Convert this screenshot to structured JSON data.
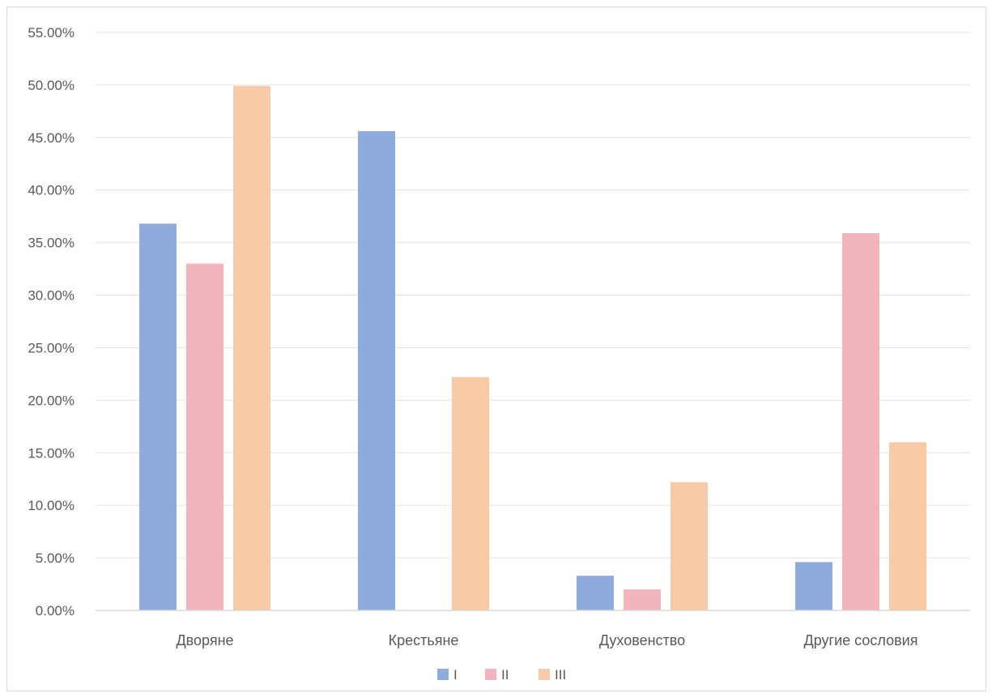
{
  "chart_data": {
    "type": "bar",
    "categories": [
      "Дворяне",
      "Крестьяне",
      "Духовенство",
      "Другие сословия"
    ],
    "series": [
      {
        "name": "I",
        "color": "#8faadc",
        "values": [
          36.8,
          45.6,
          3.3,
          4.6
        ]
      },
      {
        "name": "II",
        "color": "#f2b5be",
        "values": [
          33.0,
          0,
          2.0,
          35.9
        ]
      },
      {
        "name": "III",
        "color": "#f8cba6",
        "values": [
          49.9,
          22.2,
          12.2,
          16.0
        ]
      }
    ],
    "y_ticks": [
      "0.00%",
      "5.00%",
      "10.00%",
      "15.00%",
      "20.00%",
      "25.00%",
      "30.00%",
      "35.00%",
      "40.00%",
      "45.00%",
      "50.00%",
      "55.00%"
    ],
    "ylim": [
      0,
      55
    ],
    "grid": true,
    "legend_position": "bottom",
    "title": "",
    "xlabel": "",
    "ylabel": ""
  }
}
